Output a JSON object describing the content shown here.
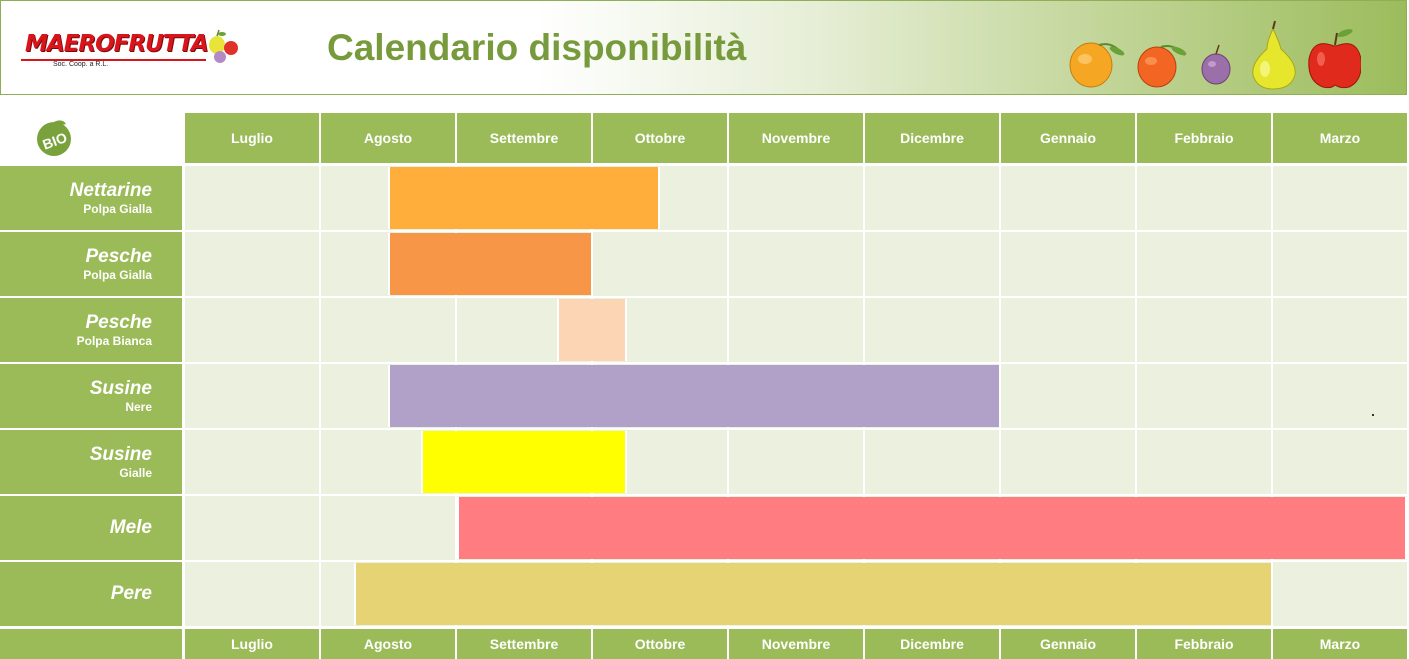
{
  "header": {
    "logo_text": "MAEROFRUTTA",
    "logo_subtitle": "Soc. Coop. a R.L.",
    "title": "Calendario disponibilità"
  },
  "bio_badge": "BIO",
  "months": [
    "Luglio",
    "Agosto",
    "Settembre",
    "Ottobre",
    "Novembre",
    "Dicembre",
    "Gennaio",
    "Febbraio",
    "Marzo"
  ],
  "products": [
    {
      "name": "Nettarine",
      "variety": "Polpa Gialla",
      "color": "#ffae3c",
      "start_month": 1.5,
      "end_month": 3.5
    },
    {
      "name": "Pesche",
      "variety": "Polpa Gialla",
      "color": "#f79646",
      "start_month": 1.5,
      "end_month": 3.0
    },
    {
      "name": "Pesche",
      "variety": "Polpa Bianca",
      "color": "#fcd5b4",
      "start_month": 2.75,
      "end_month": 3.25
    },
    {
      "name": "Susine",
      "variety": "Nere",
      "color": "#b1a0c7",
      "start_month": 1.5,
      "end_month": 6.0
    },
    {
      "name": "Susine",
      "variety": "Gialle",
      "color": "#ffff00",
      "start_month": 1.75,
      "end_month": 3.25
    },
    {
      "name": "Mele",
      "variety": "",
      "color": "#ff7c80",
      "start_month": 2.0,
      "end_month": 9.0
    },
    {
      "name": "Pere",
      "variety": "",
      "color": "#e6d474",
      "start_month": 1.25,
      "end_month": 8.0
    }
  ],
  "colors": {
    "grid_green": "#9bbb59",
    "cell_bg": "#ebf1de",
    "title_green": "#779a3c"
  },
  "icons": [
    "logo-fruit-icon",
    "bio-icon",
    "orange-icon",
    "peach-icon",
    "plum-icon",
    "pear-icon",
    "apple-icon"
  ]
}
